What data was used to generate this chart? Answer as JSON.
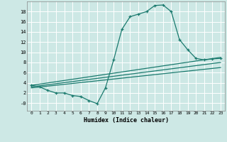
{
  "xlabel": "Humidex (Indice chaleur)",
  "bg_color": "#cde8e5",
  "grid_color": "#ffffff",
  "line_color": "#1a7a6e",
  "xlim": [
    -0.5,
    23.5
  ],
  "ylim": [
    -1.5,
    20.0
  ],
  "x_ticks": [
    0,
    1,
    2,
    3,
    4,
    5,
    6,
    7,
    8,
    9,
    10,
    11,
    12,
    13,
    14,
    15,
    16,
    17,
    18,
    19,
    20,
    21,
    22,
    23
  ],
  "y_ticks": [
    0,
    2,
    4,
    6,
    8,
    10,
    12,
    14,
    16,
    18
  ],
  "series_main": {
    "x": [
      0,
      1,
      2,
      3,
      4,
      5,
      6,
      7,
      8,
      9,
      10,
      11,
      12,
      13,
      14,
      15,
      16,
      17,
      18,
      19,
      20,
      21,
      22,
      23
    ],
    "y": [
      3.5,
      3.2,
      2.5,
      2.0,
      2.0,
      1.5,
      1.3,
      0.5,
      -0.1,
      3.0,
      8.5,
      14.5,
      17.0,
      17.5,
      18.0,
      19.2,
      19.3,
      18.0,
      12.5,
      10.5,
      8.8,
      8.5,
      8.7,
      8.8
    ]
  },
  "series_lines": [
    {
      "x": [
        0,
        23
      ],
      "y": [
        3.5,
        9.0
      ]
    },
    {
      "x": [
        0,
        23
      ],
      "y": [
        3.2,
        8.0
      ]
    },
    {
      "x": [
        0,
        23
      ],
      "y": [
        3.0,
        7.0
      ]
    }
  ],
  "figsize": [
    3.2,
    2.0
  ],
  "dpi": 100
}
